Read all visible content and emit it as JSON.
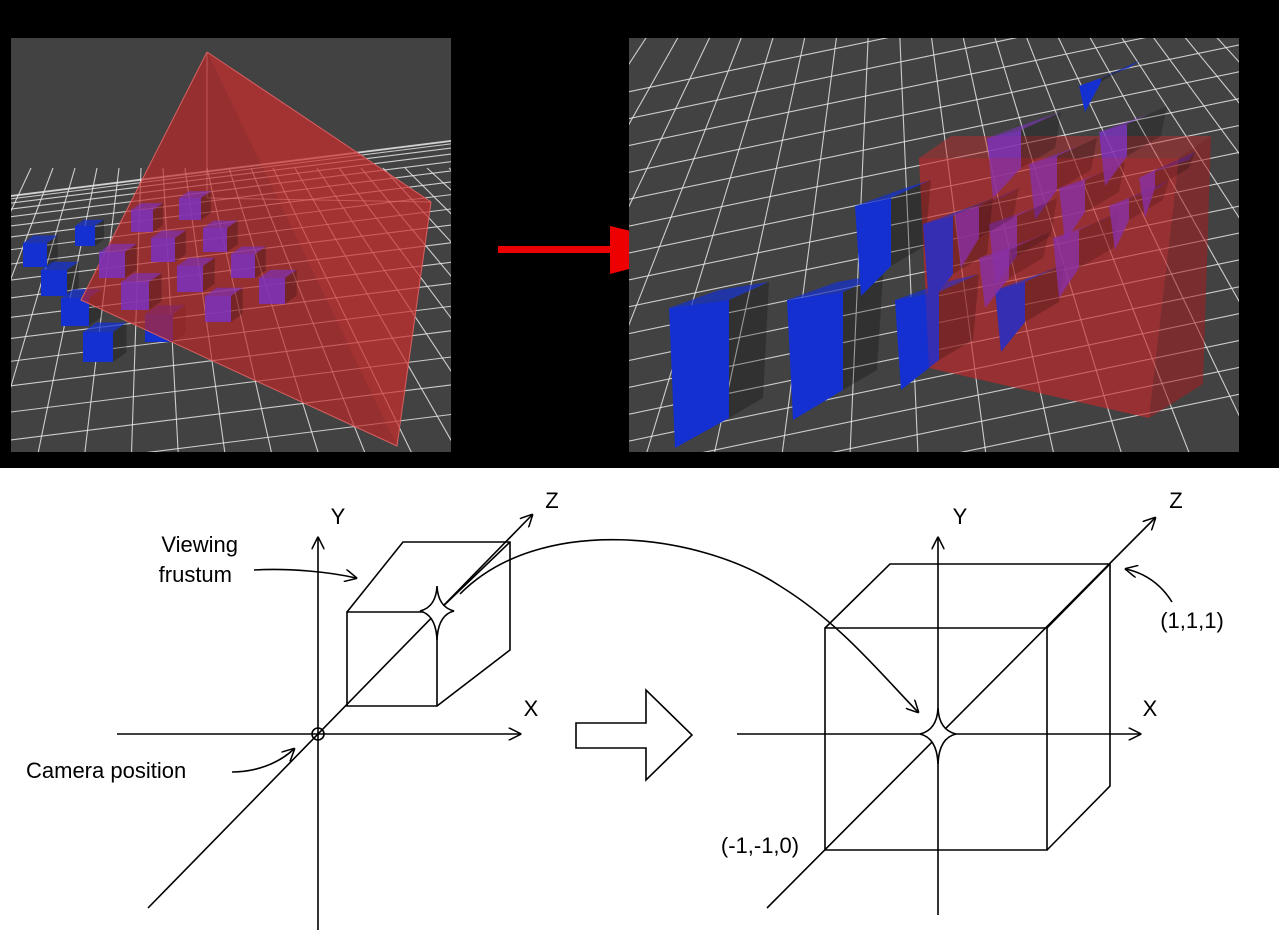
{
  "colors": {
    "render_background": "#424242",
    "grid": "#e6e6e6",
    "frustum_fill": "#c8282a",
    "cube_blue": "#1530d0",
    "cube_purple": "#7c32c0",
    "transform_arrow": "#ee0000",
    "diagram_background": "#ffffff",
    "diagram_ink": "#000000"
  },
  "renders": {
    "left": {
      "description_name": "perspective-frustum-view"
    },
    "right": {
      "description_name": "normalized-cube-view"
    }
  },
  "diagram": {
    "left": {
      "axis_y": "Y",
      "axis_z": "Z",
      "axis_x": "X",
      "frustum_label_line1": "Viewing",
      "frustum_label_line2": "frustum",
      "camera_label": "Camera position"
    },
    "right": {
      "axis_y": "Y",
      "axis_z": "Z",
      "axis_x": "X",
      "corner_max": "(1,1,1)",
      "corner_min": "(-1,-1,0)"
    }
  }
}
